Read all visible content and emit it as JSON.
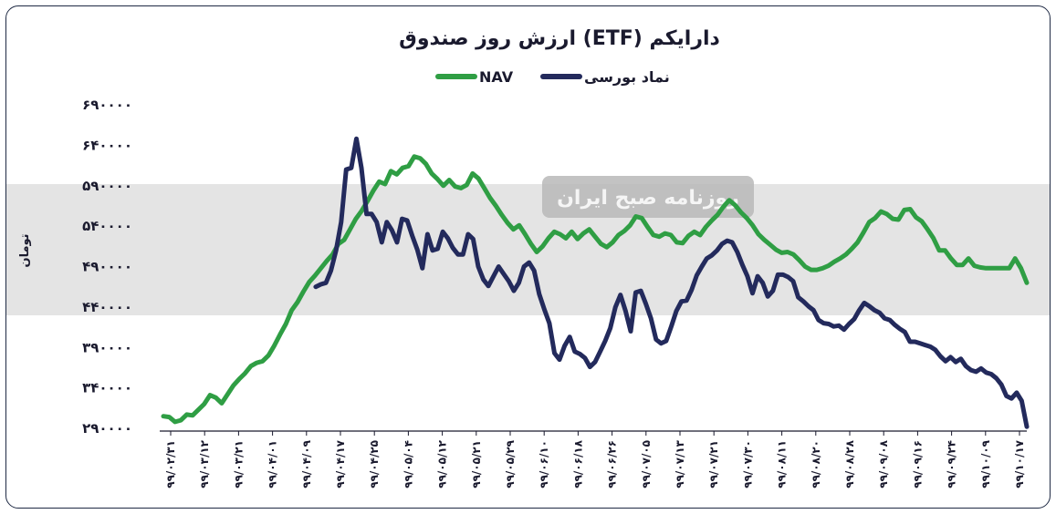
{
  "chart_data": {
    "type": "line",
    "title": "ارزش روز صندوق (ETF) دارایکم",
    "ylabel": "تومان",
    "ylim": [
      290000,
      690000
    ],
    "yticks": [
      290000,
      340000,
      390000,
      440000,
      490000,
      540000,
      590000,
      640000,
      690000
    ],
    "ytick_labels": [
      "۲۹۰۰۰۰",
      "۳۴۰۰۰۰",
      "۳۹۰۰۰۰",
      "۴۴۰۰۰۰",
      "۴۹۰۰۰۰",
      "۵۴۰۰۰۰",
      "۵۹۰۰۰۰",
      "۶۴۰۰۰۰",
      "۶۹۰۰۰۰"
    ],
    "xtick_labels": [
      "۹۹/۰۲/۳۱",
      "۹۹/۰۳/۱۲",
      "۹۹/۰۳/۲۱",
      "۹۹/۰۴/۰۱",
      "۹۹/۰۴/۰۹",
      "۹۹/۰۴/۱۷",
      "۹۹/۰۴/۲۵",
      "۹۹/۰۵/۰۴",
      "۹۹/۰۵/۱۲",
      "۹۹/۰۵/۲۱",
      "۹۹/۰۵/۲۹",
      "۹۹/۰۶/۱۰",
      "۹۹/۰۶/۱۸",
      "۹۹/۰۶/۲۶",
      "۹۹/۰۷/۰۵",
      "۹۹/۰۷/۱۳",
      "۹۹/۰۷/۲۱",
      "۹۹/۰۷/۳۰",
      "۹۹/۰۸/۱۱",
      "۹۹/۰۸/۲۰",
      "۹۹/۰۸/۲۸",
      "۹۹/۰۹/۰۸",
      "۹۹/۰۹/۱۶",
      "۹۹/۰۹/۲۴",
      "۹۹/۱۰/۰۹",
      "۹۹/۱۰/۱۷"
    ],
    "legend_position": "top-center",
    "grid": false,
    "series": [
      {
        "name": "NAV",
        "color": "#2f9e44",
        "values": [
          305000,
          304000,
          298000,
          300000,
          307000,
          306000,
          313000,
          320000,
          331000,
          328000,
          321000,
          332000,
          343000,
          351000,
          358000,
          367000,
          371000,
          373000,
          380000,
          392000,
          406000,
          419000,
          436000,
          446000,
          459000,
          471000,
          479000,
          488000,
          497000,
          505000,
          518000,
          523000,
          536000,
          549000,
          559000,
          571000,
          584000,
          595000,
          592000,
          608000,
          604000,
          612000,
          614000,
          626000,
          624000,
          617000,
          605000,
          598000,
          590000,
          597000,
          589000,
          587000,
          591000,
          605000,
          599000,
          587000,
          575000,
          565000,
          554000,
          544000,
          536000,
          541000,
          530000,
          518000,
          508000,
          515000,
          525000,
          533000,
          530000,
          525000,
          533000,
          524000,
          531000,
          536000,
          527000,
          518000,
          514000,
          520000,
          529000,
          534000,
          541000,
          552000,
          550000,
          539000,
          529000,
          527000,
          531000,
          529000,
          520000,
          519000,
          528000,
          533000,
          529000,
          539000,
          547000,
          554000,
          564000,
          572000,
          566000,
          557000,
          550000,
          541000,
          530000,
          523000,
          517000,
          511000,
          507000,
          508000,
          505000,
          498000,
          490000,
          486000,
          486000,
          488000,
          491000,
          496000,
          500000,
          505000,
          512000,
          520000,
          532000,
          545000,
          550000,
          558000,
          555000,
          549000,
          548000,
          560000,
          561000,
          551000,
          546000,
          536000,
          525000,
          510000,
          510000,
          500000,
          492000,
          492000,
          500000,
          491000,
          489000,
          488000,
          488000,
          488000,
          488000,
          488000,
          500000,
          488000,
          470000
        ]
      },
      {
        "name": "نماد بورسی",
        "color": "#232a5c",
        "values": [
          null,
          null,
          null,
          null,
          null,
          null,
          null,
          null,
          null,
          null,
          null,
          null,
          null,
          null,
          null,
          null,
          null,
          null,
          null,
          null,
          null,
          null,
          null,
          null,
          null,
          null,
          null,
          null,
          null,
          null,
          465000,
          468000,
          470000,
          485000,
          510000,
          545000,
          610000,
          612000,
          648000,
          612000,
          555000,
          555000,
          545000,
          520000,
          545000,
          535000,
          520000,
          549000,
          547000,
          528000,
          511000,
          488000,
          530000,
          510000,
          512000,
          533000,
          525000,
          513000,
          505000,
          505000,
          530000,
          524000,
          490000,
          474000,
          466000,
          478000,
          490000,
          481000,
          472000,
          460000,
          470000,
          490000,
          495000,
          485000,
          456000,
          437000,
          420000,
          383000,
          375000,
          392000,
          403000,
          385000,
          382000,
          377000,
          366000,
          372000,
          385000,
          398000,
          414000,
          440000,
          455000,
          435000,
          410000,
          458000,
          460000,
          444000,
          426000,
          400000,
          395000,
          398000,
          416000,
          435000,
          447000,
          448000,
          461000,
          479000,
          490000,
          500000,
          504000,
          510000,
          518000,
          522000,
          520000,
          508000,
          492000,
          478000,
          457000,
          478000,
          470000,
          453000,
          460000,
          480000,
          480000,
          477000,
          472000,
          452000,
          447000,
          441000,
          436000,
          424000,
          420000,
          419000,
          416000,
          417000,
          412000,
          419000,
          425000,
          436000,
          445000,
          441000,
          436000,
          433000,
          426000,
          424000,
          418000,
          413000,
          409000,
          397000,
          397000,
          395000,
          393000,
          391000,
          387000,
          379000,
          373000,
          378000,
          372000,
          376000,
          367000,
          362000,
          360000,
          364000,
          359000,
          357000,
          352000,
          344000,
          330000,
          327000,
          334000,
          324000,
          292000
        ]
      }
    ]
  },
  "watermark": {
    "text": "روزنامه صبح ایران"
  }
}
